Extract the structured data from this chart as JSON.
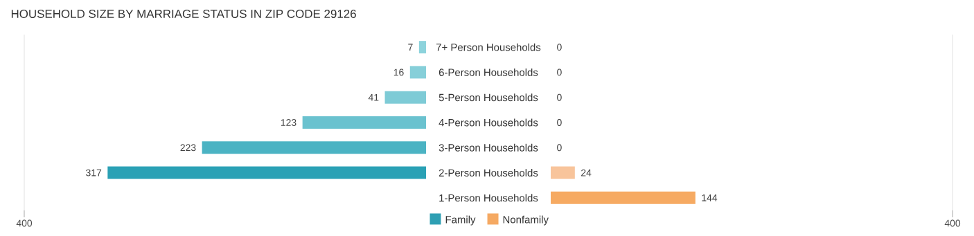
{
  "chart_data": [
    {
      "type": "bar",
      "orientation": "horizontal",
      "title": "HOUSEHOLD SIZE BY MARRIAGE STATUS IN ZIP CODE 29126",
      "categories": [
        "7+ Person Households",
        "6-Person Households",
        "5-Person Households",
        "4-Person Households",
        "3-Person Households",
        "2-Person Households",
        "1-Person Households"
      ],
      "series": [
        {
          "name": "Family",
          "color": "#2e9fb3",
          "colors": [
            "#8dd3dc",
            "#86cfd9",
            "#7ecbd6",
            "#6ac2cf",
            "#4bb3c3",
            "#2aa1b5",
            "#8dd3dc"
          ],
          "values": [
            7,
            16,
            41,
            123,
            223,
            317,
            null
          ],
          "value_labels": [
            "7",
            "16",
            "41",
            "123",
            "223",
            "317",
            null
          ]
        }
      ],
      "xlim": [
        400,
        0
      ],
      "xticks": [
        400
      ],
      "legend": "bottom"
    },
    {
      "type": "bar",
      "orientation": "horizontal",
      "categories": [
        null,
        null,
        null,
        null,
        null,
        null,
        null
      ],
      "series": [
        {
          "name": "Nonfamily",
          "color": "#f5a962",
          "colors": [
            "#f9cca9",
            "#f9cca9",
            "#f9cca9",
            "#f9cca9",
            "#f9cca9",
            "#f8c49b",
            "#f6aa62"
          ],
          "values": [
            0,
            0,
            0,
            0,
            0,
            24,
            144
          ],
          "value_labels": [
            "0",
            "0",
            "0",
            "0",
            "0",
            "24",
            "144"
          ]
        }
      ],
      "xlim": [
        0,
        400
      ],
      "xticks": [
        400
      ],
      "legend": "bottom"
    }
  ]
}
